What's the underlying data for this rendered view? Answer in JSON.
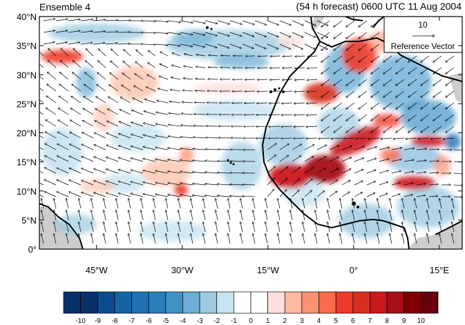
{
  "title_left": "Ensemble 4",
  "title_right": "(54 h forecast) 0600 UTC 11 Aug 2004",
  "lat_ticks": [
    {
      "value": 40,
      "label": "40°N"
    },
    {
      "value": 35,
      "label": "35°N"
    },
    {
      "value": 30,
      "label": "30°N"
    },
    {
      "value": 25,
      "label": "25°N"
    },
    {
      "value": 20,
      "label": "20°N"
    },
    {
      "value": 15,
      "label": "15°N"
    },
    {
      "value": 10,
      "label": "10°N"
    },
    {
      "value": 5,
      "label": "5°N"
    },
    {
      "value": 0,
      "label": "0°"
    }
  ],
  "lon_ticks": [
    {
      "value": -45,
      "label": "45°W"
    },
    {
      "value": -30,
      "label": "30°W"
    },
    {
      "value": -15,
      "label": "15°W"
    },
    {
      "value": 0,
      "label": "0°"
    },
    {
      "value": 15,
      "label": "15°E"
    }
  ],
  "map_extent": {
    "lon_min": -55,
    "lon_max": 19,
    "lat_min": 0,
    "lat_max": 40
  },
  "reference_vector": {
    "magnitude": "10",
    "label": "Reference Vector"
  },
  "colorbar": {
    "labels": [
      "-10",
      "-9",
      "-8",
      "-7",
      "-6",
      "-5",
      "-4",
      "-3",
      "-2",
      "-1",
      "0",
      "1",
      "2",
      "3",
      "4",
      "5",
      "6",
      "7",
      "8",
      "9",
      "10"
    ],
    "colors": [
      "#08306b",
      "#08306b",
      "#0d4a8c",
      "#1763a6",
      "#2171b5",
      "#2b7fbd",
      "#4292c6",
      "#6baed6",
      "#9ecae1",
      "#c6e4f0",
      "#ffffff",
      "#ffffff",
      "#fde0dd",
      "#fcbba1",
      "#fc9272",
      "#fb6a4a",
      "#ef3b2c",
      "#d7301f",
      "#cb181d",
      "#a50f15",
      "#7f0000",
      "#67000d"
    ]
  },
  "colors": {
    "land_outline": "#000000",
    "missing_area": "#cccccc",
    "frame": "#000000"
  }
}
